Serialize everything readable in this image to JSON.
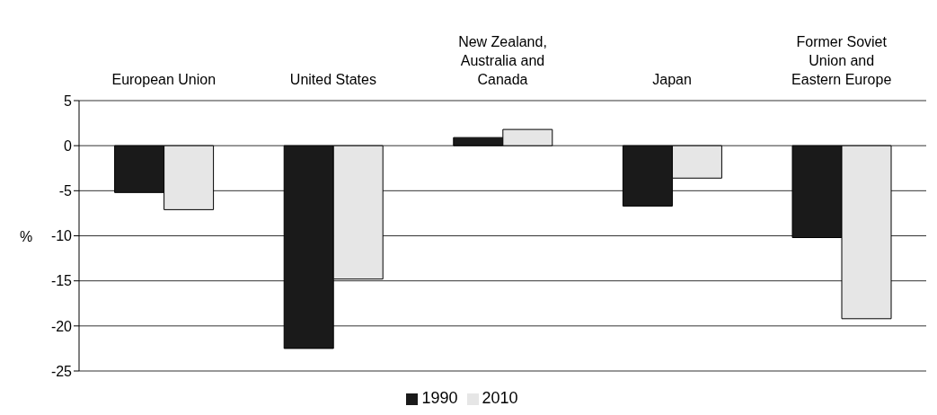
{
  "chart_data": {
    "type": "bar",
    "categories": [
      "European Union",
      "United States",
      "New Zealand, Australia and Canada",
      "Japan",
      "Former Soviet Union and Eastern Europe"
    ],
    "series": [
      {
        "name": "1990",
        "color": "#1a1a1a",
        "values": [
          -5.2,
          -22.5,
          0.9,
          -6.7,
          -10.2
        ]
      },
      {
        "name": "2010",
        "color": "#e6e6e6",
        "values": [
          -7.1,
          -14.8,
          1.8,
          -3.6,
          -19.2
        ]
      }
    ],
    "ylabel": "%",
    "ylim": [
      -25,
      5
    ],
    "yticks": [
      -25,
      -20,
      -15,
      -10,
      -5,
      0,
      5
    ],
    "grid": "y",
    "legend": "bottom"
  }
}
